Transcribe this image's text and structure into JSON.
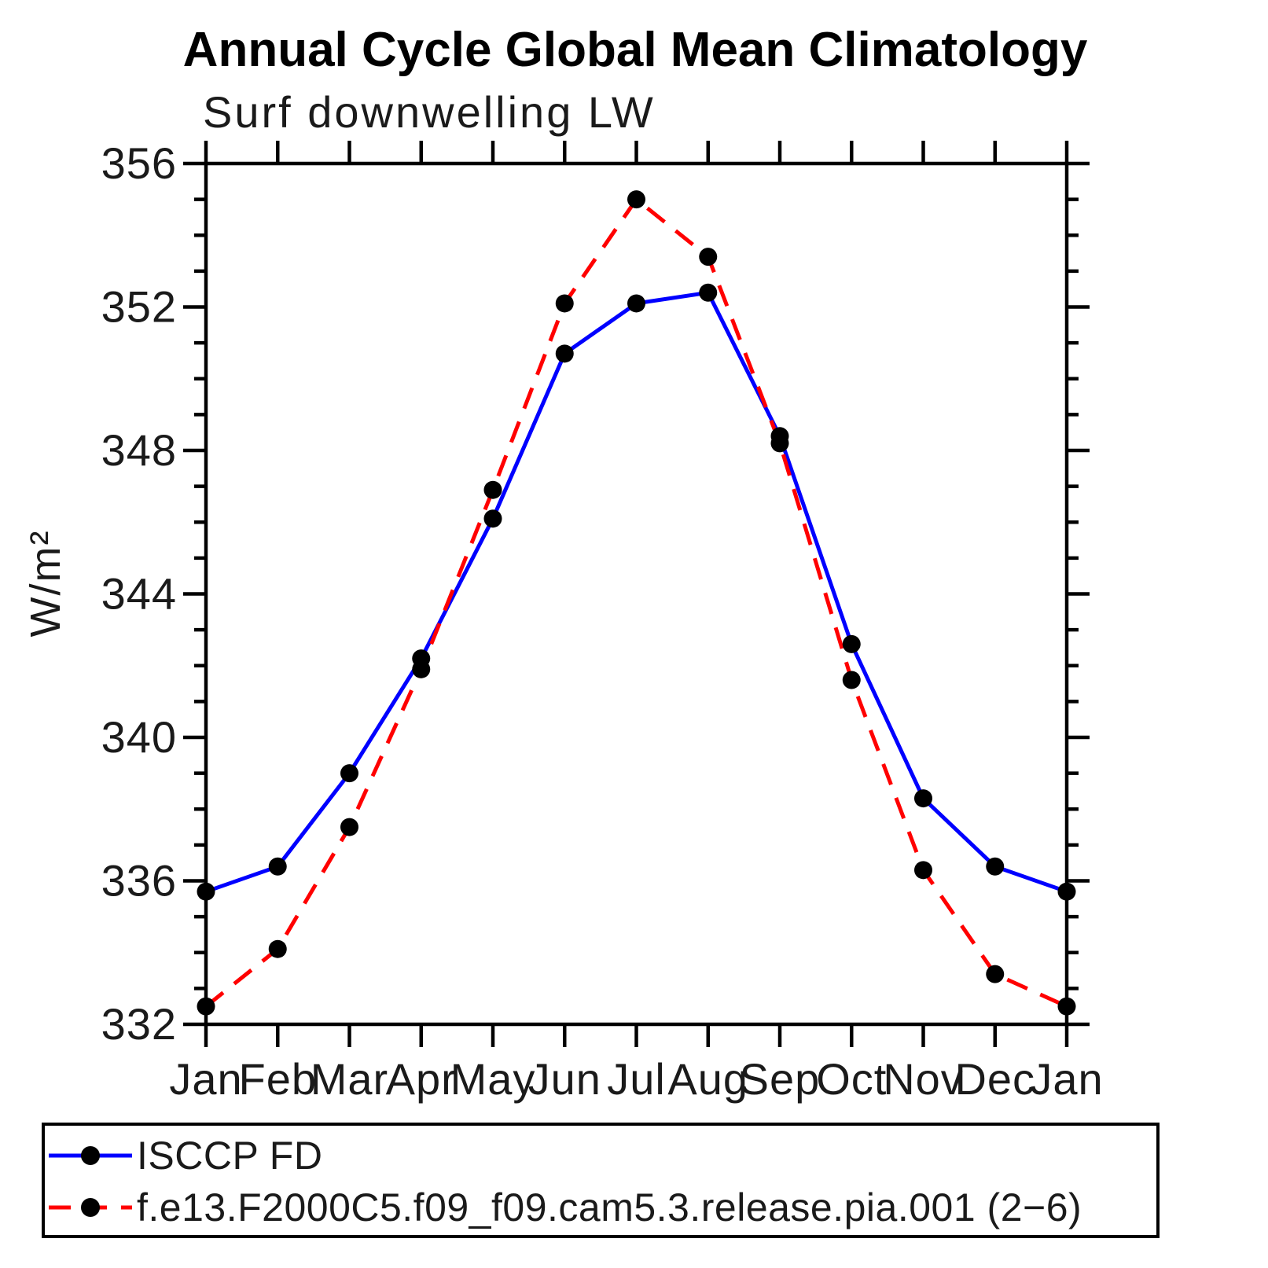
{
  "chart": {
    "title": "Annual Cycle Global Mean Climatology",
    "subtitle": "Surf downwelling LW",
    "ylabel": "W/m²"
  },
  "chart_data": {
    "type": "line",
    "title": "Annual Cycle Global Mean Climatology",
    "subtitle": "Surf downwelling LW",
    "xlabel": "",
    "ylabel": "W/m²",
    "categories": [
      "Jan",
      "Feb",
      "Mar",
      "Apr",
      "May",
      "Jun",
      "Jul",
      "Aug",
      "Sep",
      "Oct",
      "Nov",
      "Dec",
      "Jan"
    ],
    "ylim": [
      332,
      356
    ],
    "ytick_major_step": 4,
    "ytick_minor_step": 1,
    "ytick_labels": [
      "332",
      "336",
      "340",
      "344",
      "348",
      "352",
      "356"
    ],
    "grid": false,
    "legend_position": "bottom",
    "frame_color": "#000000",
    "marker_color": "#000000",
    "series": [
      {
        "name": "ISCCP FD",
        "color": "#0000ff",
        "line_style": "solid",
        "marker": "circle",
        "values": [
          335.7,
          336.4,
          339.0,
          342.2,
          346.1,
          350.7,
          352.1,
          352.4,
          348.4,
          342.6,
          338.3,
          336.4,
          335.7
        ]
      },
      {
        "name": "f.e13.F2000C5.f09_f09.cam5.3.release.pia.001 (2−6)",
        "color": "#ff0000",
        "line_style": "dashed",
        "marker": "circle",
        "values": [
          332.5,
          334.1,
          337.5,
          341.9,
          346.9,
          352.1,
          355.0,
          353.4,
          348.2,
          341.6,
          336.3,
          333.4,
          332.5
        ]
      }
    ]
  }
}
